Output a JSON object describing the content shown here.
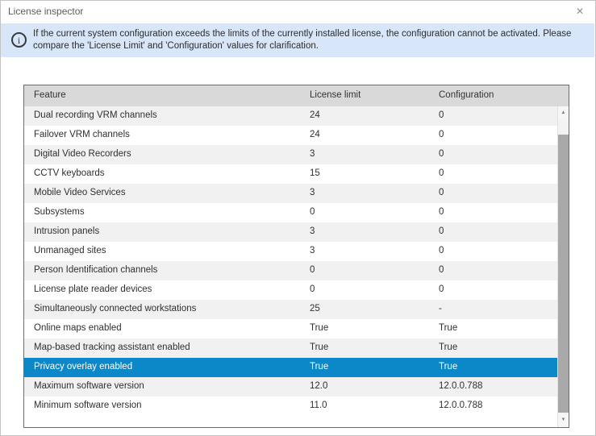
{
  "window": {
    "title": "License inspector"
  },
  "icons": {
    "close": "✕",
    "info": "i",
    "scroll_up": "▲",
    "scroll_down": "▼"
  },
  "banner": {
    "text": "If the current system configuration exceeds the limits of the currently installed license, the configuration cannot be activated. Please compare the 'License Limit' and 'Configuration' values for clarification."
  },
  "table": {
    "columns": [
      "Feature",
      "License limit",
      "Configuration"
    ],
    "rows": [
      {
        "feature": "Dual recording VRM channels",
        "limit": "24",
        "config": "0",
        "selected": false
      },
      {
        "feature": "Failover VRM channels",
        "limit": "24",
        "config": "0",
        "selected": false
      },
      {
        "feature": "Digital Video Recorders",
        "limit": "3",
        "config": "0",
        "selected": false
      },
      {
        "feature": "CCTV keyboards",
        "limit": "15",
        "config": "0",
        "selected": false
      },
      {
        "feature": "Mobile Video Services",
        "limit": "3",
        "config": "0",
        "selected": false
      },
      {
        "feature": "Subsystems",
        "limit": "0",
        "config": "0",
        "selected": false
      },
      {
        "feature": "Intrusion panels",
        "limit": "3",
        "config": "0",
        "selected": false
      },
      {
        "feature": "Unmanaged sites",
        "limit": "3",
        "config": "0",
        "selected": false
      },
      {
        "feature": "Person Identification channels",
        "limit": "0",
        "config": "0",
        "selected": false
      },
      {
        "feature": "License plate reader devices",
        "limit": "0",
        "config": "0",
        "selected": false
      },
      {
        "feature": "Simultaneously connected workstations",
        "limit": "25",
        "config": "-",
        "selected": false
      },
      {
        "feature": "Online maps enabled",
        "limit": "True",
        "config": "True",
        "selected": false
      },
      {
        "feature": "Map-based tracking assistant enabled",
        "limit": "True",
        "config": "True",
        "selected": false
      },
      {
        "feature": "Privacy overlay enabled",
        "limit": "True",
        "config": "True",
        "selected": true
      },
      {
        "feature": "Maximum software version",
        "limit": "12.0",
        "config": "12.0.0.788",
        "selected": false
      },
      {
        "feature": "Minimum software version",
        "limit": "11.0",
        "config": "12.0.0.788",
        "selected": false
      }
    ]
  },
  "colors": {
    "selection": "#0c87c8",
    "banner_background": "#d7e6f8",
    "header_background": "#d9d9d9",
    "row_alternate": "#f1f1f1",
    "scroll_thumb": "#a9a9a9"
  }
}
